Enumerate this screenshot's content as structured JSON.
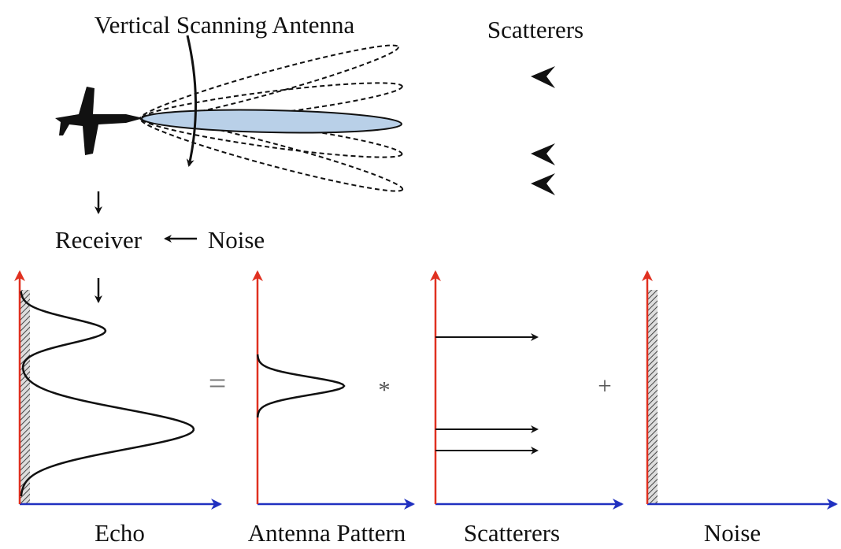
{
  "header": {
    "title": "Vertical Scanning Antenna",
    "scatterers_label": "Scatterers"
  },
  "flow": {
    "receiver": "Receiver",
    "noise": "Noise"
  },
  "equation": {
    "operators": [
      "=",
      "*",
      "+"
    ],
    "labels": [
      "Echo",
      "Antenna Pattern",
      "Scatterers",
      "Noise"
    ]
  }
}
